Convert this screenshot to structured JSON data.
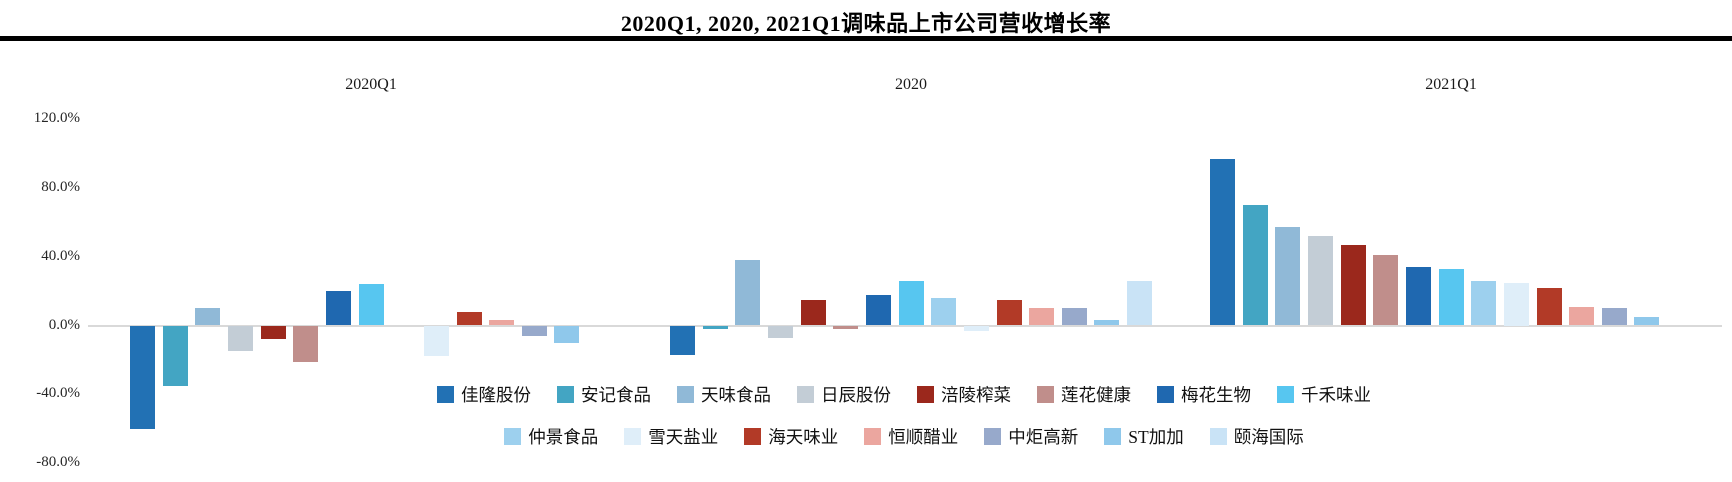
{
  "title": "2020Q1, 2020, 2021Q1调味品上市公司营收增长率",
  "chart_data": {
    "type": "bar",
    "title": "2020Q1, 2020, 2021Q1调味品上市公司营收增长率",
    "panels": [
      "2020Q1",
      "2020",
      "2021Q1"
    ],
    "yticks": [
      "120.0%",
      "80.0%",
      "40.0%",
      "0.0%",
      "-40.0%",
      "-80.0%"
    ],
    "ytick_values": [
      120,
      80,
      40,
      0,
      -40,
      -80
    ],
    "ylim": [
      -80,
      120
    ],
    "value_unit": "%",
    "grid": false,
    "legend_position": "bottom",
    "companies": [
      {
        "name": "佳隆股份",
        "color": "#2271B4"
      },
      {
        "name": "安记食品",
        "color": "#43A5C3"
      },
      {
        "name": "天味食品",
        "color": "#90B9D7"
      },
      {
        "name": "日辰股份",
        "color": "#C3CDD6"
      },
      {
        "name": "涪陵榨菜",
        "color": "#9B281C"
      },
      {
        "name": "莲花健康",
        "color": "#C08E8B"
      },
      {
        "name": "梅花生物",
        "color": "#1F68B0"
      },
      {
        "name": "千禾味业",
        "color": "#57C6F0"
      },
      {
        "name": "仲景食品",
        "color": "#9DD0EE"
      },
      {
        "name": "雪天盐业",
        "color": "#DFEEF9"
      },
      {
        "name": "海天味业",
        "color": "#B23A27"
      },
      {
        "name": "恒顺醋业",
        "color": "#EBA69F"
      },
      {
        "name": "中炬高新",
        "color": "#97A9CB"
      },
      {
        "name": "ST加加",
        "color": "#8FC8EB"
      },
      {
        "name": "颐海国际",
        "color": "#C9E3F6"
      }
    ],
    "series": [
      {
        "name": "2020Q1",
        "values": [
          -60,
          -35,
          10,
          -15,
          -8,
          -21,
          20,
          24,
          null,
          -18,
          8,
          3,
          -6,
          -10,
          null
        ]
      },
      {
        "name": "2020",
        "values": [
          -17,
          -2,
          38,
          -7,
          15,
          -2,
          18,
          26,
          16,
          -3,
          15,
          10,
          10,
          3,
          26
        ]
      },
      {
        "name": "2021Q1",
        "values": [
          97,
          70,
          57,
          52,
          47,
          41,
          34,
          33,
          26,
          25,
          22,
          11,
          10,
          5,
          null
        ]
      }
    ]
  },
  "colors": {
    "baseline": "#D9D9D9",
    "title_rule": "#000000"
  }
}
